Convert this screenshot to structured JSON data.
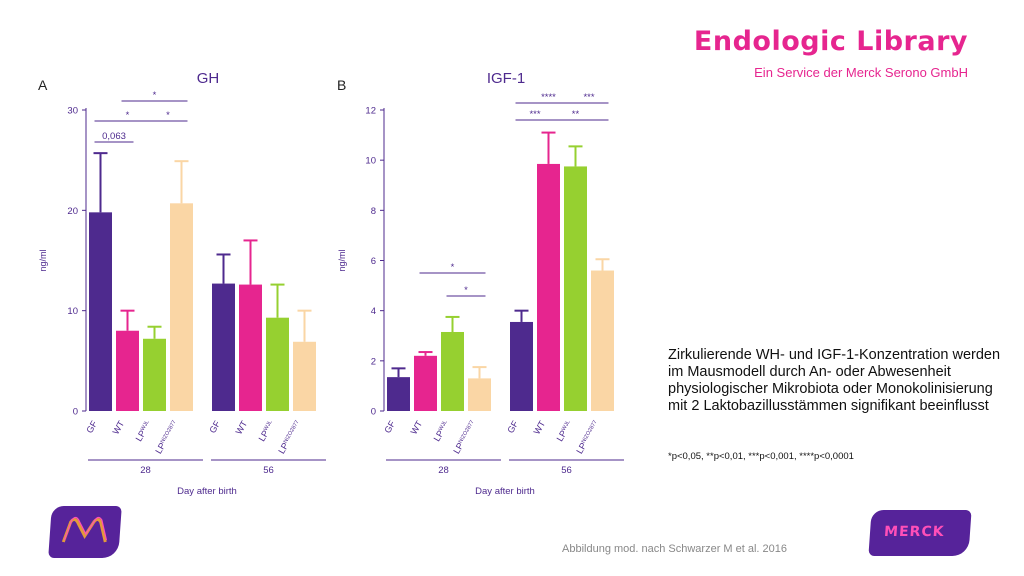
{
  "brand": {
    "title": "Endologic Library",
    "subtitle": "Ein Service der Merck Serono GmbH"
  },
  "caption": "Zirkulierende WH- und IGF-1-Konzentration werden im Mausmodell durch An- oder Abwesenheit physiologischer Mikrobiota oder Monokolinisierung mit 2 Laktobazillusstämmen signifikant beeinflusst",
  "footnote": "*p<0,05, **p<0,01, ***p<0,001, ****p<0,0001",
  "credit": "Abbildung mod. nach Schwarzer M et al. 2016",
  "logo_right_text": "MERCK",
  "colors": {
    "GF": "#4e2a8e",
    "WT": "#e6258f",
    "LP_WJL": "#96d030",
    "LP_NIZO2877": "#fad6a5",
    "axis": "#4e2a8e",
    "brand": "#e6258f"
  },
  "chart_data": [
    {
      "type": "bar",
      "panel": "A",
      "title": "GH",
      "ylabel": "ng/ml",
      "xlabel": "Day after birth",
      "ylim": [
        0,
        30
      ],
      "yticks": [
        0,
        10,
        20,
        30
      ],
      "categories": [
        "GF",
        "WT",
        "LP",
        "LP"
      ],
      "category_superscripts": [
        "",
        "",
        "WJL",
        "NIZO2877"
      ],
      "groups": [
        {
          "label": "28",
          "values": [
            19.8,
            8.0,
            7.2,
            20.7
          ],
          "errors": [
            5.9,
            2.0,
            1.2,
            4.2
          ]
        },
        {
          "label": "56",
          "values": [
            12.7,
            12.6,
            9.3,
            6.9
          ],
          "errors": [
            2.9,
            4.4,
            3.3,
            3.1
          ]
        }
      ],
      "annotations": [
        {
          "group": "28",
          "from": 0,
          "to": 1,
          "text": "0,063",
          "level": 0
        },
        {
          "group": "28",
          "from": 0,
          "to": 2,
          "text": "*",
          "level": 1
        },
        {
          "group": "28",
          "from": 2,
          "to": 3,
          "text": "*",
          "level": 1
        },
        {
          "group": "28",
          "from": 1,
          "to": 3,
          "text": "*",
          "level": 2
        }
      ]
    },
    {
      "type": "bar",
      "panel": "B",
      "title": "IGF-1",
      "ylabel": "ng/ml",
      "xlabel": "Day after birth",
      "ylim": [
        0,
        12
      ],
      "yticks": [
        0,
        2,
        4,
        6,
        8,
        10,
        12
      ],
      "categories": [
        "GF",
        "WT",
        "LP",
        "LP"
      ],
      "category_superscripts": [
        "",
        "",
        "WJL",
        "NIZO2877"
      ],
      "groups": [
        {
          "label": "28",
          "values": [
            1.35,
            2.2,
            3.15,
            1.3
          ],
          "errors": [
            0.35,
            0.15,
            0.6,
            0.45
          ]
        },
        {
          "label": "56",
          "values": [
            3.55,
            9.85,
            9.75,
            5.6
          ],
          "errors": [
            0.45,
            1.25,
            0.8,
            0.45
          ]
        }
      ],
      "annotations": [
        {
          "group": "28",
          "from": 2,
          "to": 3,
          "text": "*",
          "level": 0
        },
        {
          "group": "28",
          "from": 1,
          "to": 3,
          "text": "*",
          "level": 1
        },
        {
          "group": "56",
          "from": 0,
          "to": 1,
          "text": "***",
          "level": 0
        },
        {
          "group": "56",
          "from": 1,
          "to": 3,
          "text": "**",
          "level": 0
        },
        {
          "group": "56",
          "from": 0,
          "to": 2,
          "text": "****",
          "level": 1
        },
        {
          "group": "56",
          "from": 2,
          "to": 3,
          "text": "***",
          "level": 1
        }
      ]
    }
  ]
}
